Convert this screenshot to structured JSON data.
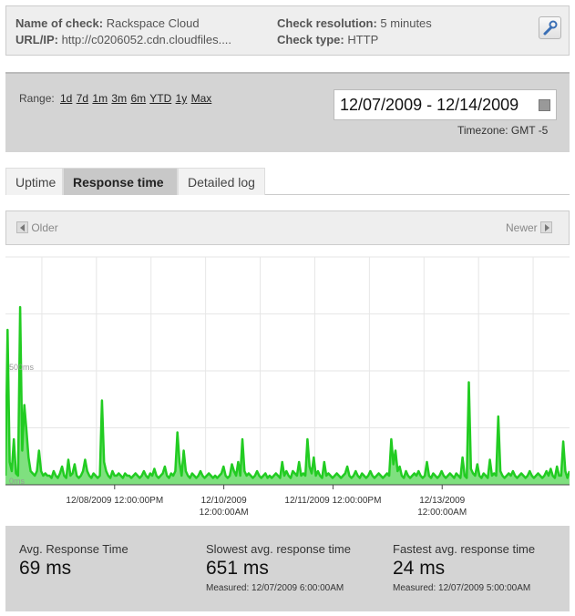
{
  "info": {
    "name_label": "Name of check:",
    "name_value": "Rackspace Cloud",
    "url_label": "URL/IP:",
    "url_value": "http://c0206052.cdn.cloudfiles....",
    "resolution_label": "Check resolution:",
    "resolution_value": "5 minutes",
    "type_label": "Check type:",
    "type_value": "HTTP",
    "edit_icon": "wrench-icon"
  },
  "range": {
    "label": "Range:",
    "links": [
      "1d",
      "7d",
      "1m",
      "3m",
      "6m",
      "YTD",
      "1y",
      "Max"
    ],
    "date_range": "12/07/2009 - 12/14/2009",
    "timezone": "Timezone: GMT -5"
  },
  "tabs": [
    "Uptime",
    "Response time",
    "Detailed log"
  ],
  "active_tab": "Response time",
  "nav": {
    "older": "Older",
    "newer": "Newer"
  },
  "chart_data": {
    "type": "area",
    "color": "#22cc22",
    "fill": "#7fe07f",
    "y_tick_labels": [
      "0ms",
      "500ms"
    ],
    "y_ticks": [
      0,
      500
    ],
    "ylim": [
      0,
      1000
    ],
    "x_tick_labels": [
      [
        "12/08/2009 12:00:00PM"
      ],
      [
        "12/10/2009",
        "12:00:00AM"
      ],
      [
        "12/11/2009 12:00:00PM"
      ],
      [
        "12/13/2009",
        "12:00:00AM"
      ]
    ],
    "x_tick_values": [
      1.5,
      3.0,
      4.5,
      6.0
    ],
    "xlim": [
      0,
      7.75
    ],
    "values": [
      40,
      680,
      100,
      60,
      200,
      50,
      40,
      780,
      150,
      350,
      240,
      120,
      60,
      50,
      40,
      60,
      150,
      60,
      40,
      50,
      40,
      40,
      30,
      60,
      40,
      30,
      50,
      80,
      40,
      30,
      110,
      40,
      50,
      90,
      40,
      30,
      40,
      60,
      110,
      60,
      40,
      30,
      50,
      40,
      30,
      40,
      370,
      100,
      60,
      40,
      30,
      60,
      40,
      40,
      50,
      40,
      30,
      50,
      40,
      40,
      30,
      40,
      50,
      40,
      30,
      40,
      60,
      40,
      30,
      50,
      40,
      70,
      40,
      30,
      40,
      50,
      80,
      40,
      30,
      50,
      40,
      60,
      230,
      100,
      40,
      150,
      60,
      40,
      30,
      50,
      40,
      30,
      40,
      60,
      40,
      30,
      40,
      50,
      40,
      30,
      40,
      30,
      40,
      50,
      80,
      40,
      30,
      40,
      90,
      60,
      40,
      100,
      40,
      200,
      60,
      40,
      50,
      40,
      30,
      40,
      60,
      40,
      30,
      40,
      50,
      30,
      40,
      30,
      40,
      50,
      40,
      30,
      100,
      40,
      60,
      40,
      30,
      60,
      50,
      40,
      100,
      40,
      50,
      40,
      200,
      80,
      50,
      120,
      40,
      60,
      40,
      30,
      100,
      40,
      50,
      40,
      30,
      40,
      50,
      40,
      30,
      40,
      50,
      80,
      40,
      30,
      40,
      60,
      40,
      30,
      50,
      40,
      30,
      40,
      60,
      40,
      30,
      40,
      50,
      40,
      30,
      40,
      50,
      40,
      200,
      90,
      150,
      60,
      80,
      40,
      30,
      60,
      40,
      30,
      40,
      50,
      40,
      60,
      40,
      30,
      40,
      100,
      40,
      30,
      50,
      40,
      30,
      40,
      60,
      40,
      30,
      40,
      50,
      40,
      30,
      50,
      40,
      30,
      120,
      40,
      30,
      450,
      70,
      50,
      40,
      90,
      40,
      30,
      50,
      40,
      30,
      110,
      40,
      50,
      40,
      300,
      60,
      40,
      30,
      40,
      50,
      40,
      60,
      40,
      30,
      40,
      50,
      40,
      30,
      40,
      60,
      40,
      30,
      40,
      50,
      40,
      30,
      40,
      60,
      40,
      70,
      40,
      30,
      80,
      40,
      40,
      190,
      60,
      30,
      60
    ]
  },
  "stats": {
    "avg_label": "Avg. Response Time",
    "avg_value": "69 ms",
    "slow_label": "Slowest avg. response time",
    "slow_value": "651 ms",
    "slow_measured": "Measured: 12/07/2009 6:00:00AM",
    "fast_label": "Fastest avg. response time",
    "fast_value": "24 ms",
    "fast_measured": "Measured: 12/07/2009 5:00:00AM"
  }
}
